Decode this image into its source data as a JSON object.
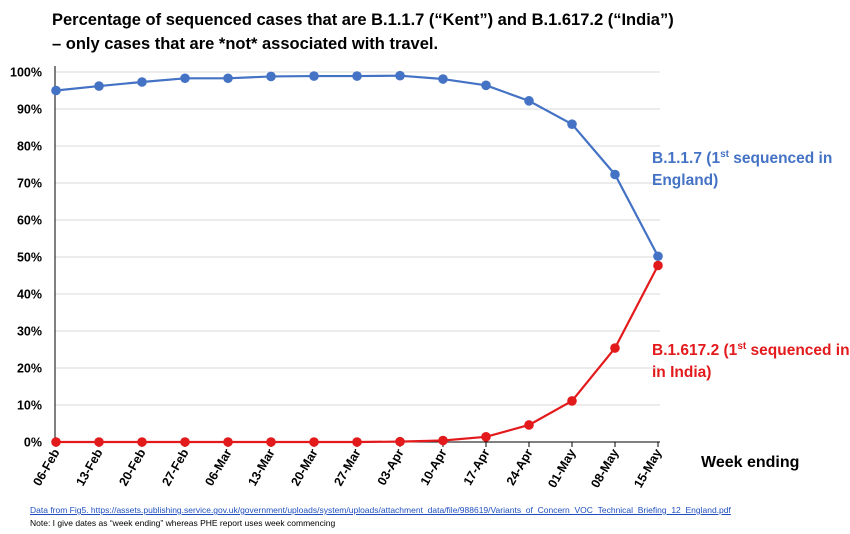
{
  "title_line1": "Percentage of sequenced cases that are B.1.1.7 (“Kent”) and B.1.617.2 (“India”)",
  "title_line2": "– only cases that are *not* associated with travel.",
  "xaxis_title": "Week ending",
  "source_text": "Data from Fig5. https://assets.publishing.service.gov.uk/government/uploads/system/uploads/attachment_data/file/988619/Variants_of_Concern_VOC_Technical_Briefing_12_England.pdf",
  "note_text": "Note: I give dates as “week ending” whereas PHE report uses week commencing",
  "labels": {
    "kent_pre": "B.1.1.7 (1",
    "kent_sup": "st",
    "kent_post": " sequenced in",
    "kent_line2": "England)",
    "india_pre": "B.1.617.2 (1",
    "india_sup": "st",
    "india_post": " sequenced in",
    "india_line2": "in India)"
  },
  "colors": {
    "kent": "#4472c4",
    "india": "#e31a1c",
    "grid": "#d9d9d9",
    "axis": "#000000"
  },
  "chart_data": {
    "type": "line",
    "categories": [
      "06-Feb",
      "13-Feb",
      "20-Feb",
      "27-Feb",
      "06-Mar",
      "13-Mar",
      "20-Mar",
      "27-Mar",
      "03-Apr",
      "10-Apr",
      "17-Apr",
      "24-Apr",
      "01-May",
      "08-May",
      "15-May"
    ],
    "yticks": [
      "0%",
      "10%",
      "20%",
      "30%",
      "40%",
      "50%",
      "60%",
      "70%",
      "80%",
      "90%",
      "100%"
    ],
    "ylim": [
      0,
      100
    ],
    "grid": true,
    "series": [
      {
        "key": "kent",
        "values": [
          95,
          96.2,
          97.3,
          98.3,
          98.3,
          98.8,
          98.9,
          98.9,
          99.0,
          98.1,
          96.4,
          92.2,
          85.9,
          72.3,
          50.2
        ]
      },
      {
        "key": "india",
        "values": [
          0,
          0,
          0,
          0,
          0,
          0,
          0,
          0,
          0.1,
          0.4,
          1.4,
          4.6,
          11.1,
          25.4,
          47.7
        ]
      }
    ]
  }
}
